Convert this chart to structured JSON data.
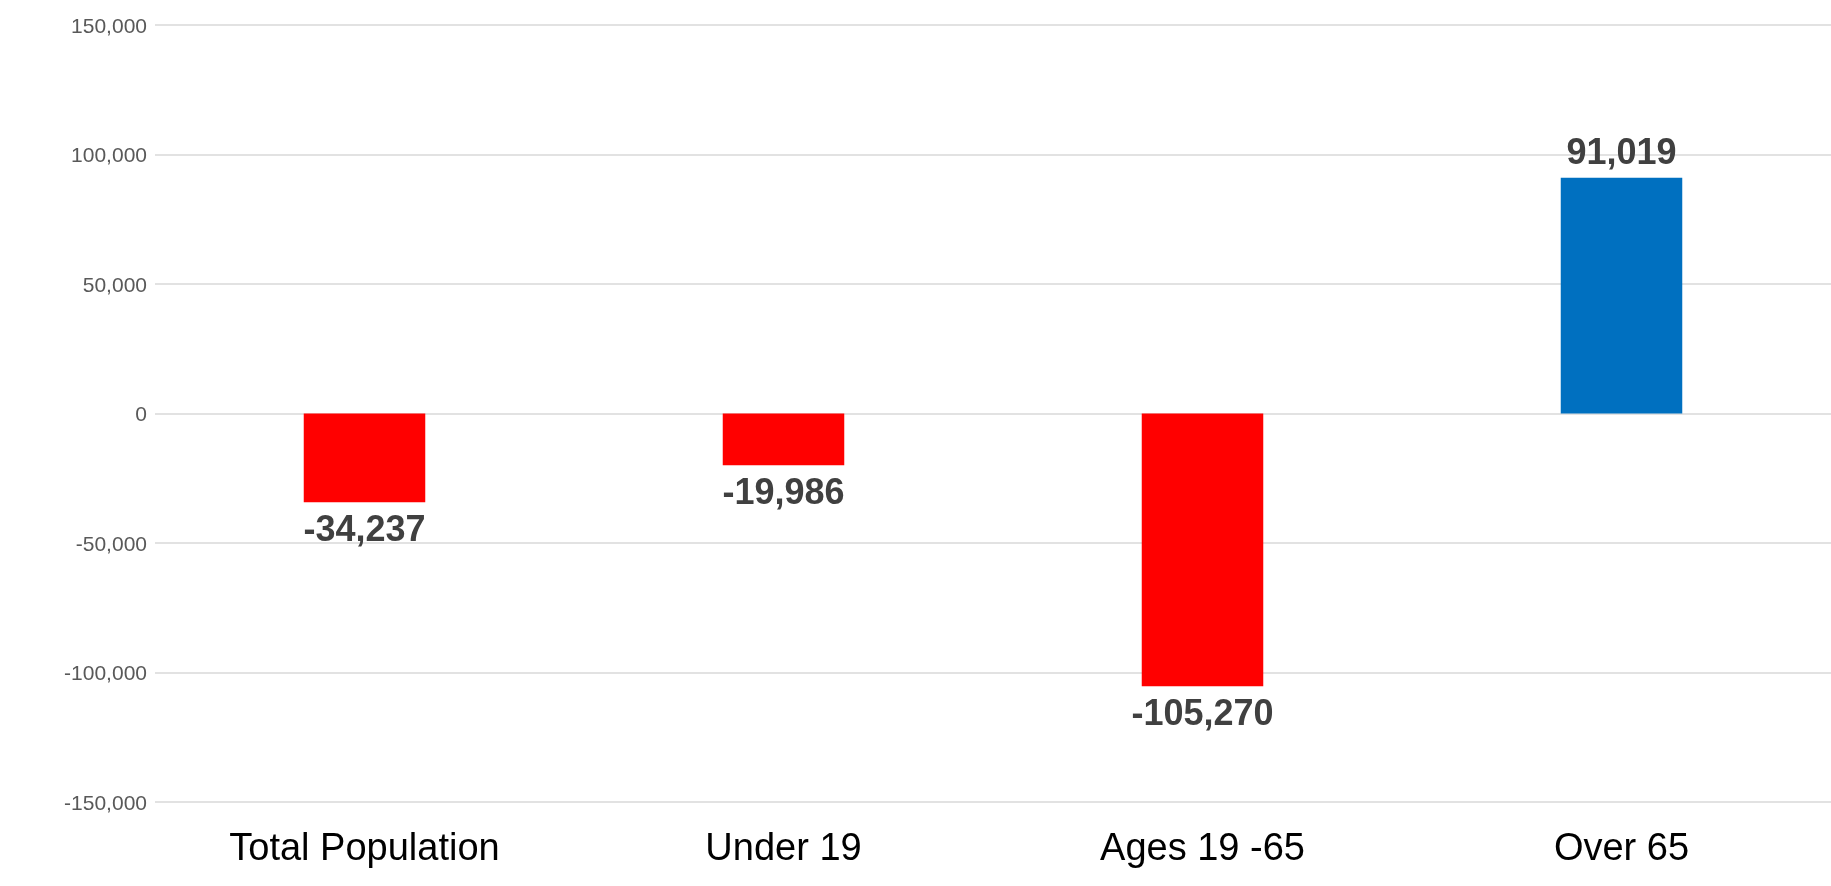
{
  "chart_data": {
    "type": "bar",
    "categories": [
      "Total Population",
      "Under 19",
      "Ages 19 -65",
      "Over 65"
    ],
    "values": [
      -34237,
      -19986,
      -105270,
      91019
    ],
    "colors": [
      "#ff0000",
      "#ff0000",
      "#ff0000",
      "#0070c0"
    ],
    "value_labels": [
      "-34,237",
      "-19,986",
      "-105,270",
      "91,019"
    ],
    "ylim": [
      -150000,
      150000
    ],
    "yticks": [
      {
        "value": -150000,
        "label": "-150,000"
      },
      {
        "value": -100000,
        "label": "-100,000"
      },
      {
        "value": -50000,
        "label": "-50,000"
      },
      0,
      {
        "value": 50000,
        "label": "50,000"
      },
      {
        "value": 100000,
        "label": "100,000"
      },
      {
        "value": 150000,
        "label": "150,000"
      }
    ],
    "grid": "y"
  }
}
